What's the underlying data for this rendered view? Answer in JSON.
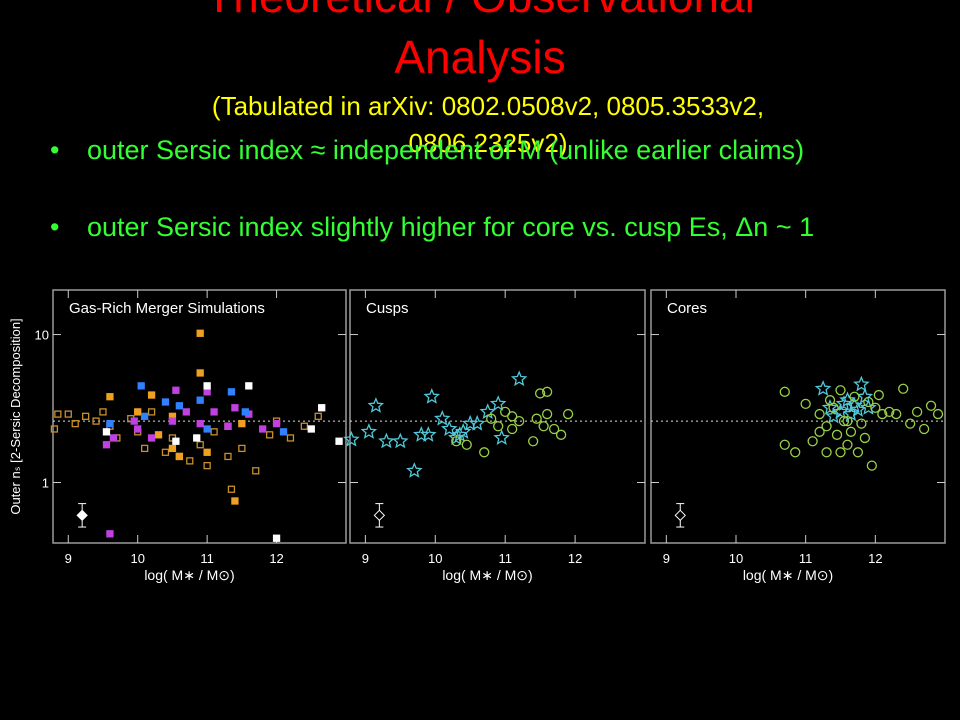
{
  "slide": {
    "title": [
      "Theoretical / Observational",
      "Analysis"
    ],
    "subtitle": [
      "(Tabulated in arXiv: 0802.0508v2, 0805.3533v2,",
      "0806.2325v2)"
    ],
    "bullets": [
      "outer Sersic index ≈ independent of M (unlike earlier claims)",
      "outer Sersic index slightly higher for core vs. cusp Es, Δn ~ 1"
    ]
  },
  "chart_data": [
    {
      "type": "scatter",
      "title": "Gas-Rich Merger Simulations",
      "ylabel": "Outer nₛ [2-Sersic Decomposition]",
      "xlabel": "log( M∗ / M⊙)",
      "xlim": [
        8.78,
        13.0
      ],
      "xticks": [
        9,
        10,
        11,
        12
      ],
      "ylim": [
        0.39,
        20
      ],
      "yticks": [
        1,
        10
      ],
      "ylog": true,
      "show_ytick_labels": true,
      "hline": 2.6,
      "error_bar": {
        "x": 9.2,
        "y": 0.6,
        "low": 0.5,
        "high": 0.72,
        "filled": true
      },
      "series": [
        {
          "color": "#c8902a",
          "marker": "square",
          "filled": false,
          "x": [
            8.8,
            8.85,
            9.0,
            9.1,
            9.25,
            9.4,
            9.5,
            9.6,
            9.7,
            9.9,
            10.0,
            10.1,
            10.2,
            10.4,
            10.5,
            10.6,
            10.75,
            10.9,
            11.0,
            11.1,
            11.3,
            11.35,
            11.5,
            11.7,
            11.9,
            12.0,
            12.2,
            12.4,
            12.6
          ],
          "values": [
            2.3,
            2.9,
            2.9,
            2.5,
            2.8,
            2.6,
            3.0,
            2.4,
            2.0,
            2.7,
            2.2,
            1.7,
            3.0,
            1.6,
            2.0,
            1.5,
            1.4,
            1.8,
            1.3,
            2.2,
            1.5,
            0.9,
            1.7,
            1.2,
            2.1,
            2.6,
            2.0,
            2.4,
            2.8
          ]
        },
        {
          "color": "#f0a020",
          "marker": "square",
          "filled": true,
          "x": [
            10.0,
            10.2,
            10.3,
            10.5,
            10.6,
            10.9,
            10.9,
            11.0,
            11.3,
            11.4,
            11.5,
            10.5,
            9.6
          ],
          "values": [
            3.0,
            3.9,
            2.1,
            2.8,
            1.5,
            10.2,
            5.5,
            1.6,
            2.4,
            0.75,
            2.5,
            1.7,
            3.8
          ]
        },
        {
          "color": "#c040e0",
          "marker": "square",
          "filled": true,
          "x": [
            9.55,
            9.65,
            9.95,
            10.0,
            10.2,
            10.5,
            10.55,
            10.7,
            10.9,
            11.0,
            11.1,
            11.3,
            11.4,
            11.6,
            11.8,
            12.0,
            9.6
          ],
          "values": [
            1.8,
            2.0,
            2.6,
            2.3,
            2.0,
            2.6,
            4.2,
            3.0,
            2.5,
            4.1,
            3.0,
            2.4,
            3.2,
            2.9,
            2.3,
            2.5,
            0.45
          ]
        },
        {
          "color": "#3080ff",
          "marker": "square",
          "filled": true,
          "x": [
            9.6,
            10.05,
            10.1,
            10.4,
            10.6,
            10.9,
            11.0,
            11.35,
            11.55,
            12.1
          ],
          "values": [
            2.5,
            4.5,
            2.8,
            3.5,
            3.3,
            3.6,
            2.3,
            4.1,
            3.0,
            2.2
          ]
        },
        {
          "color": "#ffffff",
          "marker": "square",
          "filled": true,
          "x": [
            9.55,
            10.55,
            10.85,
            11.0,
            11.6,
            12.5,
            12.65,
            12.0,
            12.9
          ],
          "values": [
            2.2,
            1.9,
            2.0,
            4.5,
            4.5,
            2.3,
            3.2,
            0.42,
            1.9
          ]
        }
      ]
    },
    {
      "type": "scatter",
      "title": "Cusps",
      "xlabel": "log( M∗ / M⊙)",
      "xlim": [
        8.78,
        13.0
      ],
      "xticks": [
        9,
        10,
        11,
        12
      ],
      "ylim": [
        0.39,
        20
      ],
      "yticks": [
        1,
        10
      ],
      "ylog": true,
      "show_ytick_labels": false,
      "hline": 2.6,
      "error_bar": {
        "x": 9.2,
        "y": 0.6,
        "low": 0.5,
        "high": 0.72,
        "filled": false
      },
      "series": [
        {
          "color": "#50c8d8",
          "marker": "star",
          "filled": false,
          "x": [
            8.8,
            9.05,
            9.15,
            9.3,
            9.5,
            9.7,
            9.8,
            9.9,
            9.95,
            10.1,
            10.2,
            10.3,
            10.35,
            10.5,
            10.6,
            10.9,
            10.95,
            11.2,
            10.75,
            10.4
          ],
          "values": [
            1.95,
            2.2,
            3.3,
            1.9,
            1.9,
            1.2,
            2.1,
            2.1,
            3.8,
            2.7,
            2.3,
            2.0,
            2.1,
            2.5,
            2.5,
            3.4,
            2.0,
            5.0,
            3.0,
            2.2
          ]
        },
        {
          "color": "#98d048",
          "marker": "circle",
          "filled": false,
          "x": [
            10.3,
            10.45,
            10.7,
            10.8,
            10.9,
            11.0,
            11.1,
            11.1,
            11.2,
            11.4,
            11.45,
            11.5,
            11.55,
            11.6,
            11.7,
            11.8,
            11.9,
            11.6
          ],
          "values": [
            1.9,
            1.8,
            1.6,
            2.7,
            2.4,
            3.0,
            2.8,
            2.3,
            2.6,
            1.9,
            2.7,
            4.0,
            2.4,
            4.1,
            2.3,
            2.1,
            2.9,
            2.9
          ]
        }
      ]
    },
    {
      "type": "scatter",
      "title": "Cores",
      "xlabel": "log( M∗ / M⊙)",
      "xlim": [
        8.78,
        13.0
      ],
      "xticks": [
        9,
        10,
        11,
        12
      ],
      "ylim": [
        0.39,
        20
      ],
      "yticks": [
        1,
        10
      ],
      "ylog": true,
      "show_ytick_labels": false,
      "hline": 2.6,
      "error_bar": {
        "x": 9.2,
        "y": 0.6,
        "low": 0.5,
        "high": 0.72,
        "filled": false
      },
      "series": [
        {
          "color": "#50c8d8",
          "marker": "star",
          "filled": false,
          "x": [
            11.25,
            11.35,
            11.5,
            11.6,
            11.65,
            11.7,
            11.8,
            11.85,
            11.75,
            11.4,
            11.9,
            11.55
          ],
          "values": [
            4.3,
            3.2,
            3.0,
            3.6,
            2.9,
            3.3,
            4.6,
            3.8,
            3.1,
            2.8,
            3.2,
            3.4
          ]
        },
        {
          "color": "#98d048",
          "marker": "circle",
          "filled": false,
          "x": [
            10.7,
            10.7,
            10.85,
            11.0,
            11.1,
            11.2,
            11.3,
            11.3,
            11.4,
            11.45,
            11.5,
            11.5,
            11.6,
            11.6,
            11.65,
            11.7,
            11.75,
            11.8,
            11.85,
            11.9,
            11.95,
            12.0,
            12.05,
            12.1,
            12.2,
            12.3,
            12.4,
            12.5,
            12.6,
            12.7,
            12.8,
            12.9,
            11.35,
            11.55,
            11.2
          ],
          "values": [
            4.1,
            1.8,
            1.6,
            3.4,
            1.9,
            2.9,
            2.4,
            1.6,
            3.2,
            2.1,
            4.2,
            1.6,
            2.6,
            1.8,
            2.2,
            3.8,
            1.6,
            2.5,
            2.0,
            3.5,
            1.3,
            3.2,
            3.9,
            2.9,
            3.0,
            2.9,
            4.3,
            2.5,
            3.0,
            2.3,
            3.3,
            2.9,
            3.6,
            2.6,
            2.2
          ]
        }
      ]
    }
  ]
}
